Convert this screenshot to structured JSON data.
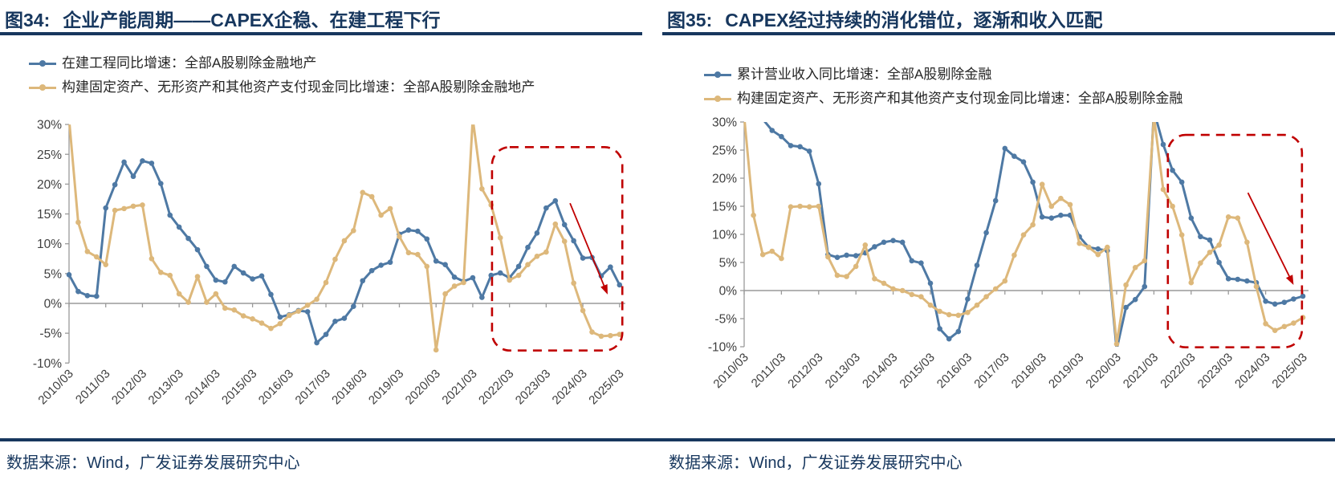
{
  "page": {
    "background": "#ffffff",
    "rule_color": "#17375e"
  },
  "panels": [
    {
      "title_prefix": "图34:",
      "title": "企业产能周期——CAPEX企稳、在建工程下行",
      "source": "数据来源：Wind，广发证券发展研究中心"
    },
    {
      "title_prefix": "图35:",
      "title": "CAPEX经过持续的消化错位，逐渐和收入匹配",
      "source": "数据来源：Wind，广发证券发展研究中心"
    }
  ],
  "chart_data": [
    {
      "type": "line",
      "title": "企业产能周期——CAPEX企稳、在建工程下行",
      "x_unit": "quarter",
      "x_start": "2010/03",
      "x_end": "2025/03",
      "x_tick_labels": [
        "2010/03",
        "2011/03",
        "2012/03",
        "2013/03",
        "2014/03",
        "2015/03",
        "2016/03",
        "2017/03",
        "2018/03",
        "2019/03",
        "2020/03",
        "2021/03",
        "2022/03",
        "2023/03",
        "2024/03",
        "2025/03"
      ],
      "ylim": [
        -10,
        30
      ],
      "yticks": [
        30,
        25,
        20,
        15,
        10,
        5,
        0,
        -5,
        -10
      ],
      "y_tick_suffix": "%",
      "grid": false,
      "legend_position": "top-left",
      "series": [
        {
          "name": "在建工程同比增速：全部A股剔除金融地产",
          "color": "#4e79a4",
          "values": [
            4.8,
            2.0,
            1.3,
            1.2,
            16.0,
            19.9,
            23.7,
            21.3,
            23.9,
            23.5,
            20.1,
            14.8,
            12.8,
            10.9,
            9.0,
            6.2,
            3.9,
            3.6,
            6.2,
            5.1,
            4.1,
            4.6,
            1.5,
            -2.3,
            -1.9,
            -1.2,
            -1.4,
            -6.6,
            -5.2,
            -3.0,
            -2.5,
            -0.5,
            3.8,
            5.5,
            6.4,
            6.9,
            11.6,
            12.3,
            12.1,
            10.8,
            7.1,
            6.5,
            4.4,
            3.7,
            4.3,
            1.0,
            4.7,
            5.1,
            4.3,
            6.2,
            9.4,
            11.8,
            16.0,
            17.2,
            13.2,
            10.5,
            7.6,
            7.7,
            4.6,
            6.1,
            3.1
          ]
        },
        {
          "name": "构建固定资产、无形资产和其他资产支付现金同比增速：全部A股剔除金融地产",
          "color": "#ddb87b",
          "values": [
            31,
            13.6,
            8.7,
            7.8,
            6.5,
            15.6,
            15.9,
            16.3,
            16.5,
            7.5,
            5.2,
            4.7,
            1.6,
            0.2,
            4.5,
            0.2,
            1.6,
            -0.8,
            -1.1,
            -2.1,
            -2.6,
            -3.3,
            -4.2,
            -3.4,
            -2.0,
            -1.3,
            -0.3,
            0.7,
            3.5,
            7.4,
            10.5,
            12.2,
            18.6,
            17.9,
            14.8,
            15.9,
            11.2,
            8.5,
            8.2,
            6.2,
            -7.8,
            1.6,
            2.9,
            3.5,
            31,
            19.2,
            16.5,
            11.0,
            3.9,
            4.7,
            6.5,
            7.9,
            8.6,
            13.3,
            10.4,
            3.4,
            -1.2,
            -4.8,
            -5.5,
            -5.4,
            -5.2
          ]
        }
      ],
      "annotation": {
        "color": "#c00000",
        "box": {
          "i0": 46.1,
          "i1": 60.3,
          "v_top": 26.2,
          "v_bottom": -7.9
        },
        "arrow": {
          "i0": 54.6,
          "v0": 16.8,
          "i1": 58.7,
          "v1": 1.5
        }
      }
    },
    {
      "type": "line",
      "title": "CAPEX经过持续的消化错位，逐渐和收入匹配",
      "x_unit": "quarter",
      "x_start": "2010/03",
      "x_end": "2025/03",
      "x_tick_labels": [
        "2010/03",
        "2011/03",
        "2012/03",
        "2013/03",
        "2014/03",
        "2015/03",
        "2016/03",
        "2017/03",
        "2018/03",
        "2019/03",
        "2020/03",
        "2021/03",
        "2022/03",
        "2023/03",
        "2024/03",
        "2025/03"
      ],
      "ylim": [
        -10,
        30
      ],
      "yticks": [
        30,
        25,
        20,
        15,
        10,
        5,
        0,
        -5,
        -10
      ],
      "y_tick_suffix": "%",
      "grid": false,
      "legend_position": "top-left",
      "series": [
        {
          "name": "累计营业收入同比增速：全部A股剔除金融",
          "color": "#4e79a4",
          "values": [
            32,
            31,
            30.5,
            28.5,
            27.4,
            25.8,
            25.6,
            24.8,
            19.0,
            6.4,
            5.9,
            6.3,
            6.2,
            6.7,
            7.8,
            8.6,
            8.9,
            8.6,
            5.3,
            4.9,
            1.3,
            -6.8,
            -8.6,
            -7.3,
            -1.5,
            4.5,
            10.3,
            16.0,
            25.3,
            23.9,
            22.9,
            19.3,
            13.1,
            12.9,
            13.4,
            13.4,
            9.6,
            7.7,
            7.4,
            7.1,
            -10.5,
            -3.0,
            -1.6,
            0.7,
            32,
            26.0,
            21.4,
            19.3,
            12.9,
            9.6,
            9.0,
            5.0,
            2.1,
            2.0,
            1.7,
            1.4,
            -1.9,
            -2.4,
            -2.1,
            -1.5,
            -1.0
          ]
        },
        {
          "name": "构建固定资产、无形资产和其他资产支付现金同比增速：全部A股剔除金融",
          "color": "#ddb87b",
          "values": [
            31,
            13.4,
            6.4,
            7.0,
            5.7,
            14.9,
            15.0,
            14.9,
            15.0,
            6.0,
            2.7,
            2.5,
            4.3,
            8.1,
            2.1,
            1.3,
            0.3,
            0.0,
            -0.7,
            -1.1,
            -2.6,
            -3.7,
            -4.3,
            -4.4,
            -3.9,
            -2.6,
            -1.1,
            0.3,
            1.7,
            6.3,
            9.9,
            11.7,
            18.9,
            15.0,
            16.4,
            15.3,
            8.4,
            7.7,
            6.4,
            7.7,
            -9.5,
            1.0,
            4.1,
            5.3,
            31,
            18.0,
            15.0,
            9.9,
            1.4,
            4.9,
            6.8,
            8.1,
            13.1,
            12.9,
            8.6,
            0.7,
            -5.9,
            -7.1,
            -6.4,
            -5.8,
            -4.8
          ]
        }
      ],
      "annotation": {
        "color": "#c00000",
        "box": {
          "i0": 45.5,
          "i1": 59.9,
          "v_top": 27.7,
          "v_bottom": -10.1
        },
        "arrow": {
          "i0": 54.1,
          "v0": 17.4,
          "i1": 59.0,
          "v1": 1.0
        }
      }
    }
  ]
}
